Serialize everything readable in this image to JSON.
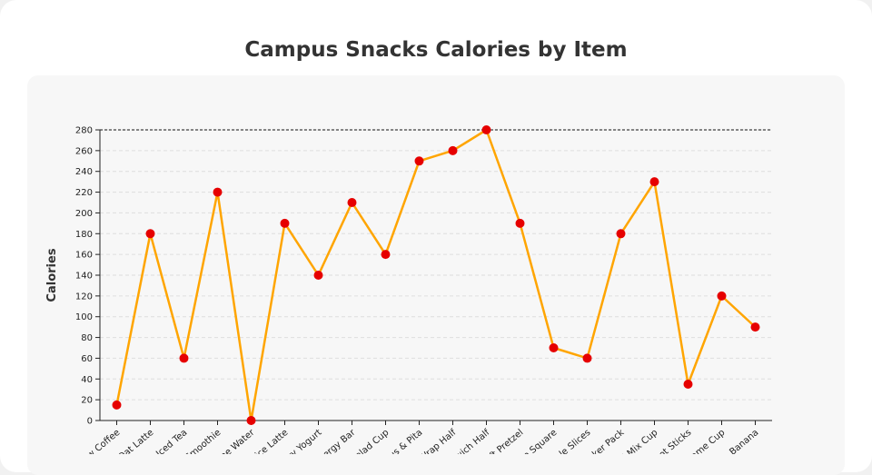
{
  "chart_data": {
    "type": "line",
    "title": "Campus Snacks Calories by Item",
    "xlabel": "",
    "ylabel": "Calories",
    "ylim": [
      0,
      280
    ],
    "yticks": [
      0,
      20,
      40,
      60,
      80,
      100,
      120,
      140,
      160,
      180,
      200,
      220,
      240,
      260,
      280
    ],
    "grid": true,
    "reference_line": 280,
    "categories": [
      "Cold Brew Coffee",
      "Oat Latte",
      "Iced Tea",
      "Smoothie",
      "Sparkling Lime Water",
      "Chai Spice Latte",
      "Berry Yogurt",
      "Energy Bar",
      "Fruit Salad Cup",
      "Hummus & Pita",
      "Veggie Wrap Half",
      "Turkey Sandwich Half",
      "Mini Soft Pretzel",
      "Rice Krispie Square",
      "Apple Slices",
      "Cheese Cracker Pack",
      "Trail Mix Cup",
      "Carrot Sticks",
      "Edamame Cup",
      "Banana"
    ],
    "series": [
      {
        "name": "Calories",
        "values": [
          15,
          180,
          60,
          220,
          0,
          190,
          140,
          210,
          160,
          250,
          260,
          280,
          190,
          70,
          60,
          180,
          230,
          35,
          120,
          90
        ],
        "line_color": "#FFA500",
        "marker_color": "#E60000"
      }
    ]
  }
}
